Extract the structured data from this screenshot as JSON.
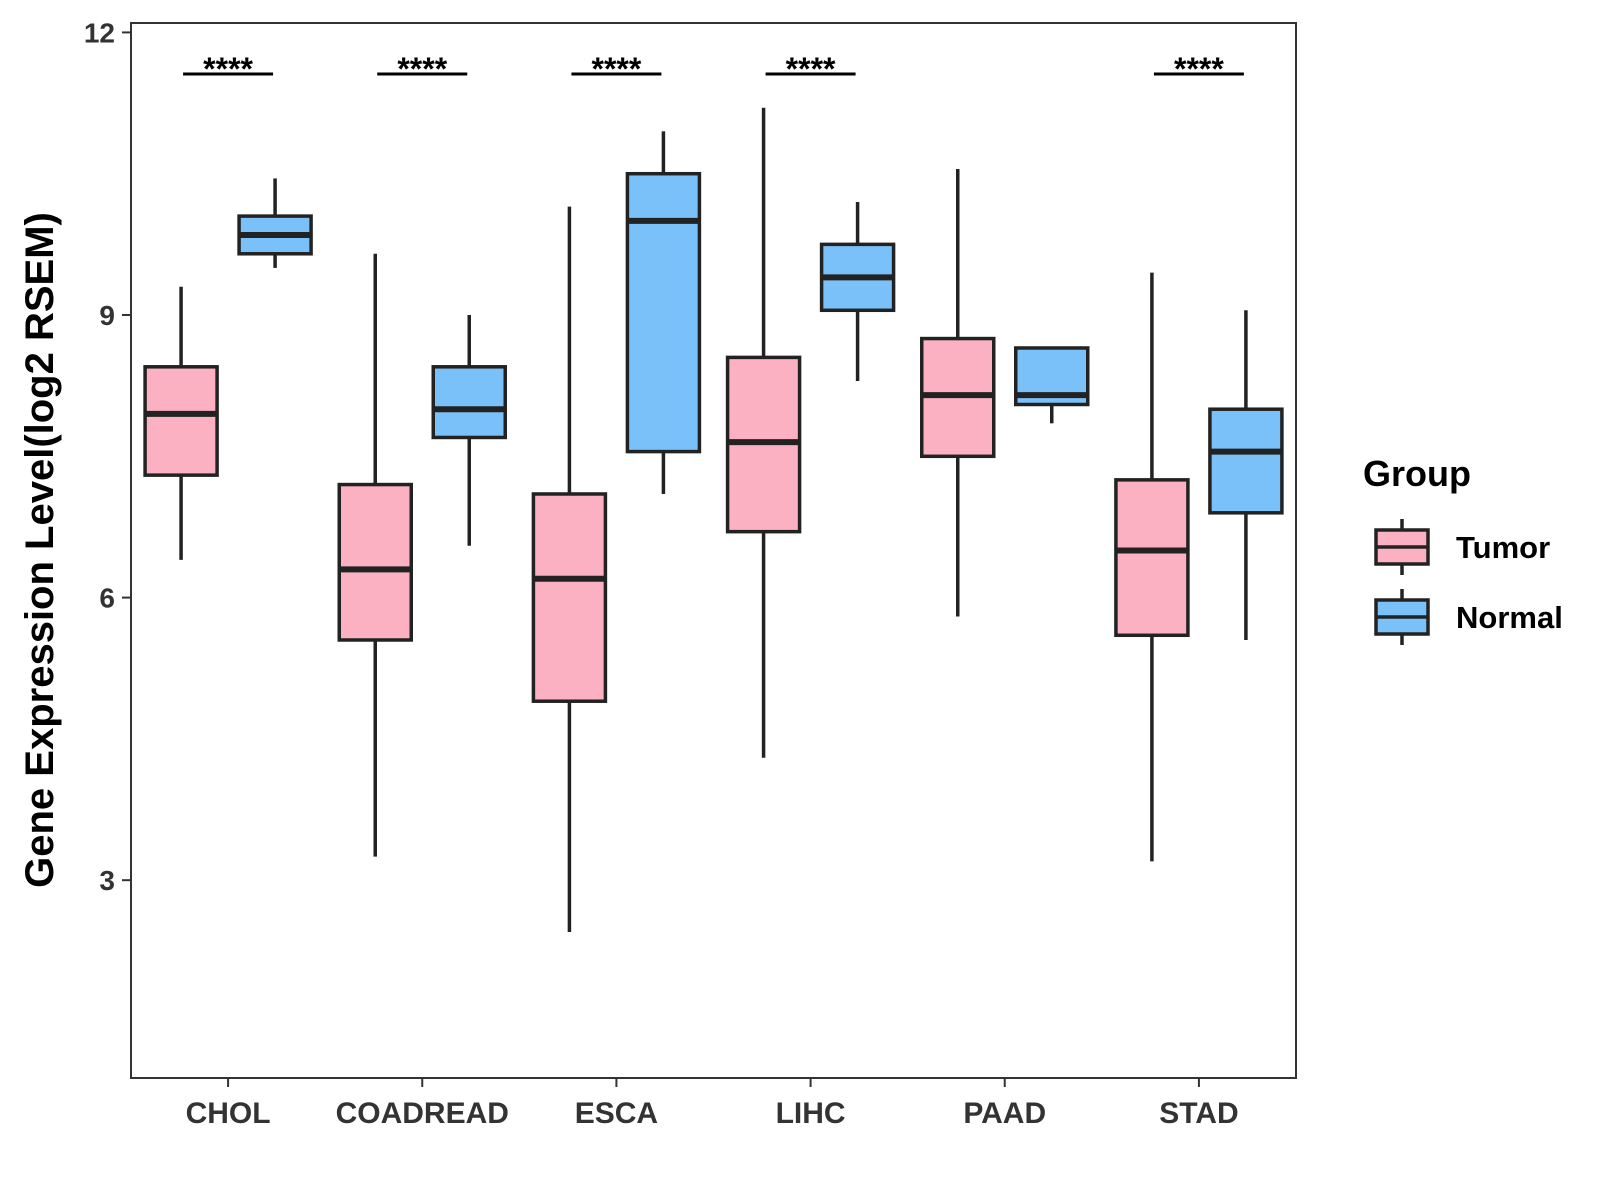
{
  "chart_data": {
    "type": "boxplot",
    "ylabel": "Gene Expression Level(log2 RSEM)",
    "xlabel": "",
    "ylim": [
      0.9,
      12.1
    ],
    "yticks": [
      3,
      6,
      9,
      12
    ],
    "ytick_labels": [
      "3",
      "6",
      "9",
      "12"
    ],
    "categories": [
      "CHOL",
      "COADREAD",
      "ESCA",
      "LIHC",
      "PAAD",
      "STAD"
    ],
    "legend": {
      "title": "Group",
      "position": "right",
      "entries": [
        "Tumor",
        "Normal"
      ]
    },
    "series": [
      {
        "name": "Tumor",
        "color": "#FBB1C1",
        "boxes": [
          {
            "min": 6.4,
            "q1": 7.3,
            "median": 7.95,
            "q3": 8.45,
            "max": 9.3
          },
          {
            "min": 3.25,
            "q1": 5.55,
            "median": 6.3,
            "q3": 7.2,
            "max": 9.65
          },
          {
            "min": 2.45,
            "q1": 4.9,
            "median": 6.2,
            "q3": 7.1,
            "max": 10.15
          },
          {
            "min": 4.3,
            "q1": 6.7,
            "median": 7.65,
            "q3": 8.55,
            "max": 11.2
          },
          {
            "min": 5.8,
            "q1": 7.5,
            "median": 8.15,
            "q3": 8.75,
            "max": 10.55
          },
          {
            "min": 3.2,
            "q1": 5.6,
            "median": 6.5,
            "q3": 7.25,
            "max": 9.45
          }
        ]
      },
      {
        "name": "Normal",
        "color": "#7BC1F9",
        "boxes": [
          {
            "min": 9.5,
            "q1": 9.65,
            "median": 9.85,
            "q3": 10.05,
            "max": 10.45
          },
          {
            "min": 6.55,
            "q1": 7.7,
            "median": 8.0,
            "q3": 8.45,
            "max": 9.0
          },
          {
            "min": 7.1,
            "q1": 7.55,
            "median": 10.0,
            "q3": 10.5,
            "max": 10.95
          },
          {
            "min": 8.3,
            "q1": 9.05,
            "median": 9.4,
            "q3": 9.75,
            "max": 10.2
          },
          {
            "min": 7.85,
            "q1": 8.05,
            "median": 8.15,
            "q3": 8.65,
            "max": 8.65
          },
          {
            "min": 5.55,
            "q1": 6.9,
            "median": 7.55,
            "q3": 8.0,
            "max": 9.05
          }
        ]
      }
    ],
    "significance": [
      "****",
      "****",
      "****",
      "****",
      "",
      "****"
    ]
  }
}
